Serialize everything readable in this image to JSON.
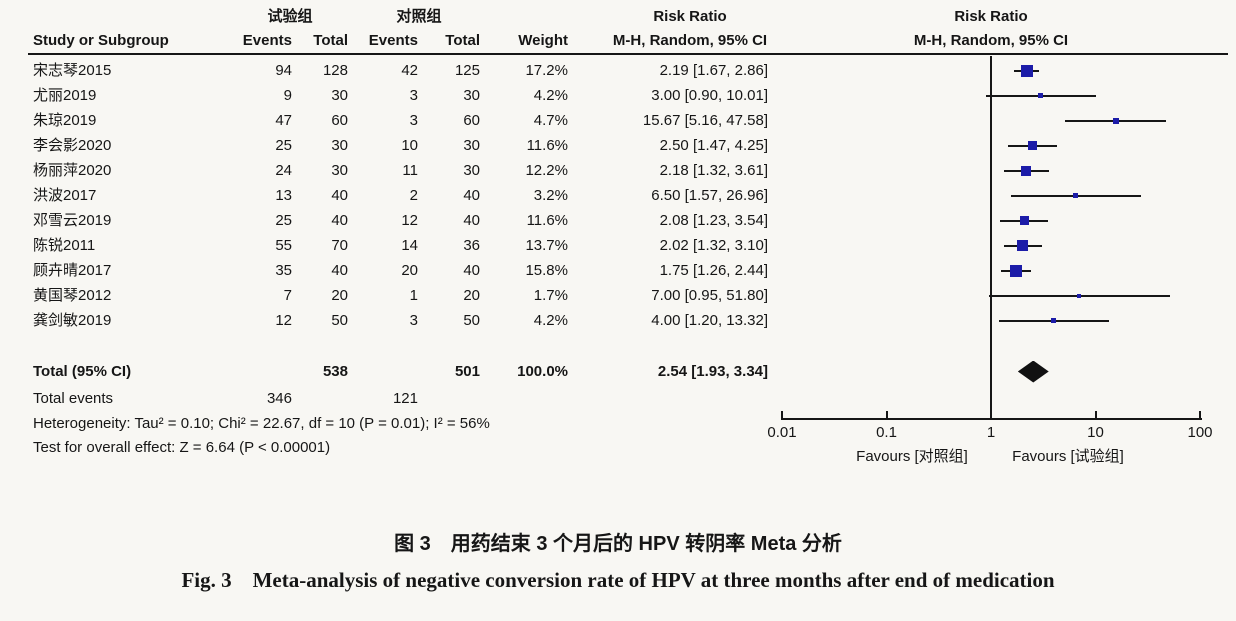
{
  "table_header": {
    "group_experimental": "试验组",
    "group_control": "对照组",
    "col_study": "Study or Subgroup",
    "col_events_1": "Events",
    "col_total_1": "Total",
    "col_events_2": "Events",
    "col_total_2": "Total",
    "col_weight": "Weight",
    "rr_title_text_col": "Risk Ratio",
    "rr_subtitle_text_col": "M-H, Random, 95% CI",
    "rr_title_plot_col": "Risk Ratio",
    "rr_subtitle_plot_col": "M-H, Random, 95% CI"
  },
  "chart_data": {
    "type": "scatter",
    "variant": "forest-plot-meta-analysis",
    "effect_measure": "Risk Ratio",
    "method": "M-H, Random, 95% CI",
    "x_scale": "log10",
    "xlim": [
      0.01,
      100
    ],
    "x_ticks": [
      0.01,
      0.1,
      1,
      10,
      100
    ],
    "x_tick_labels": [
      "0.01",
      "0.1",
      "1",
      "10",
      "100"
    ],
    "null_line_value": 1,
    "favours_left": "Favours [对照组]",
    "favours_right": "Favours [试验组]",
    "studies": [
      {
        "name": "宋志琴2015",
        "exp_events": 94,
        "exp_total": 128,
        "ctrl_events": 42,
        "ctrl_total": 125,
        "weight_pct": 17.2,
        "weight_label": "17.2%",
        "rr": 2.19,
        "ci_low": 1.67,
        "ci_high": 2.86,
        "ci_label": "2.19 [1.67, 2.86]"
      },
      {
        "name": "尤丽2019",
        "exp_events": 9,
        "exp_total": 30,
        "ctrl_events": 3,
        "ctrl_total": 30,
        "weight_pct": 4.2,
        "weight_label": "4.2%",
        "rr": 3.0,
        "ci_low": 0.9,
        "ci_high": 10.01,
        "ci_label": "3.00 [0.90, 10.01]"
      },
      {
        "name": "朱琼2019",
        "exp_events": 47,
        "exp_total": 60,
        "ctrl_events": 3,
        "ctrl_total": 60,
        "weight_pct": 4.7,
        "weight_label": "4.7%",
        "rr": 15.67,
        "ci_low": 5.16,
        "ci_high": 47.58,
        "ci_label": "15.67 [5.16, 47.58]"
      },
      {
        "name": "李会影2020",
        "exp_events": 25,
        "exp_total": 30,
        "ctrl_events": 10,
        "ctrl_total": 30,
        "weight_pct": 11.6,
        "weight_label": "11.6%",
        "rr": 2.5,
        "ci_low": 1.47,
        "ci_high": 4.25,
        "ci_label": "2.50 [1.47, 4.25]"
      },
      {
        "name": "杨丽萍2020",
        "exp_events": 24,
        "exp_total": 30,
        "ctrl_events": 11,
        "ctrl_total": 30,
        "weight_pct": 12.2,
        "weight_label": "12.2%",
        "rr": 2.18,
        "ci_low": 1.32,
        "ci_high": 3.61,
        "ci_label": "2.18 [1.32, 3.61]"
      },
      {
        "name": "洪波2017",
        "exp_events": 13,
        "exp_total": 40,
        "ctrl_events": 2,
        "ctrl_total": 40,
        "weight_pct": 3.2,
        "weight_label": "3.2%",
        "rr": 6.5,
        "ci_low": 1.57,
        "ci_high": 26.96,
        "ci_label": "6.50 [1.57, 26.96]"
      },
      {
        "name": "邓雪云2019",
        "exp_events": 25,
        "exp_total": 40,
        "ctrl_events": 12,
        "ctrl_total": 40,
        "weight_pct": 11.6,
        "weight_label": "11.6%",
        "rr": 2.08,
        "ci_low": 1.23,
        "ci_high": 3.54,
        "ci_label": "2.08 [1.23, 3.54]"
      },
      {
        "name": "陈锐2011",
        "exp_events": 55,
        "exp_total": 70,
        "ctrl_events": 14,
        "ctrl_total": 36,
        "weight_pct": 13.7,
        "weight_label": "13.7%",
        "rr": 2.02,
        "ci_low": 1.32,
        "ci_high": 3.1,
        "ci_label": "2.02 [1.32, 3.10]"
      },
      {
        "name": "顾卉晴2017",
        "exp_events": 35,
        "exp_total": 40,
        "ctrl_events": 20,
        "ctrl_total": 40,
        "weight_pct": 15.8,
        "weight_label": "15.8%",
        "rr": 1.75,
        "ci_low": 1.26,
        "ci_high": 2.44,
        "ci_label": "1.75 [1.26, 2.44]"
      },
      {
        "name": "黄国琴2012",
        "exp_events": 7,
        "exp_total": 20,
        "ctrl_events": 1,
        "ctrl_total": 20,
        "weight_pct": 1.7,
        "weight_label": "1.7%",
        "rr": 7.0,
        "ci_low": 0.95,
        "ci_high": 51.8,
        "ci_label": "7.00 [0.95, 51.80]"
      },
      {
        "name": "龚剑敏2019",
        "exp_events": 12,
        "exp_total": 50,
        "ctrl_events": 3,
        "ctrl_total": 50,
        "weight_pct": 4.2,
        "weight_label": "4.2%",
        "rr": 4.0,
        "ci_low": 1.2,
        "ci_high": 13.32,
        "ci_label": "4.00 [1.20, 13.32]"
      }
    ],
    "total": {
      "label": "Total (95% CI)",
      "exp_total": "538",
      "ctrl_total": "501",
      "weight_label": "100.0%",
      "rr": 2.54,
      "ci_low": 1.93,
      "ci_high": 3.34,
      "ci_label": "2.54 [1.93, 3.34]"
    },
    "total_events": {
      "label": "Total events",
      "exp_events": "346",
      "ctrl_events": "121"
    },
    "heterogeneity": "Heterogeneity: Tau² = 0.10; Chi² = 22.67, df = 10 (P = 0.01); I² = 56%",
    "overall_effect": "Test for overall effect: Z = 6.64 (P < 0.00001)"
  },
  "caption": {
    "zh": "图 3　用药结束 3 个月后的 HPV 转阴率 Meta 分析",
    "en": "Fig. 3　Meta-analysis of negative conversion rate of HPV at three months after end of medication"
  },
  "colors": {
    "background": "#f8f7f3",
    "marker_blue": "#1c1ca8",
    "line_black": "#161616"
  }
}
